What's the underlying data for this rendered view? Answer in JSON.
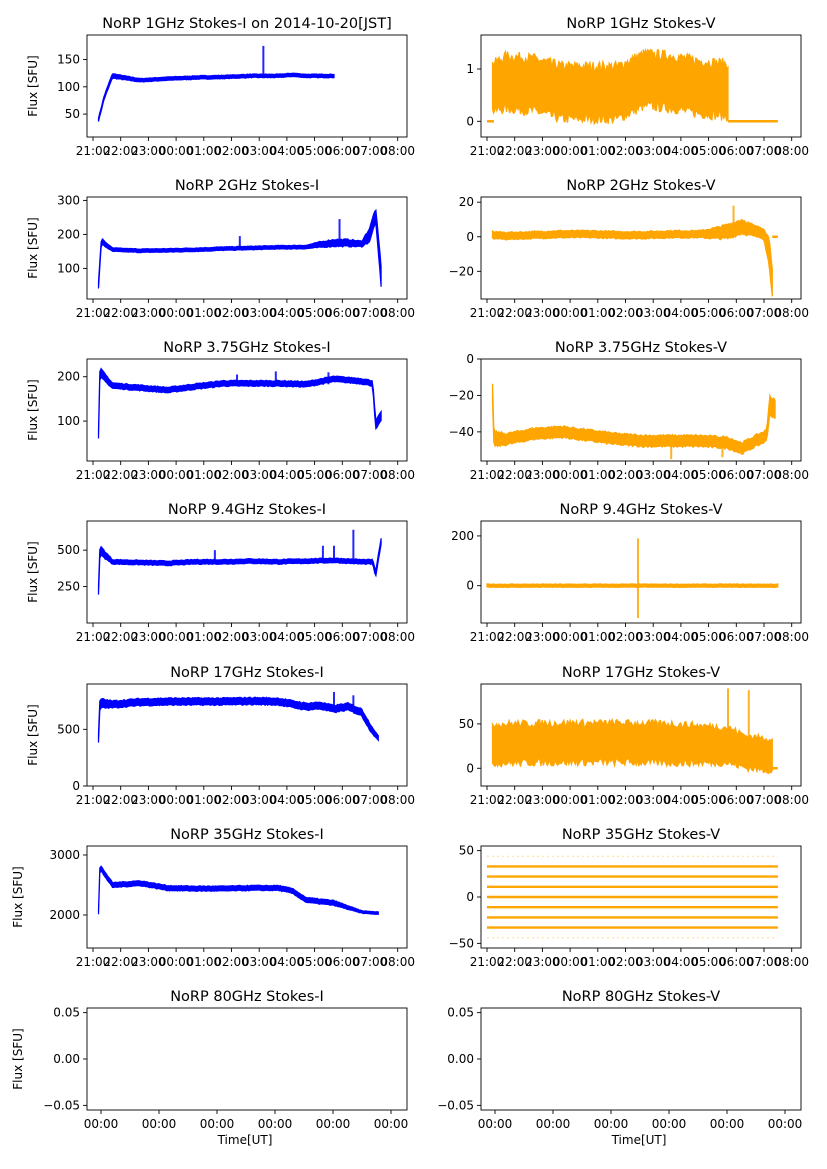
{
  "chart_data": [
    {
      "id": "1ghz-i",
      "type": "scatter",
      "title": "NoRP 1GHz Stokes-I on 2014-10-20[JST]",
      "ylabel": "Flux [SFU]",
      "xlabel": "",
      "color": "#0000ff",
      "ylim": [
        8,
        195
      ],
      "yticks": [
        50,
        100,
        150
      ],
      "ytick_labels": [
        "50",
        "100",
        "150"
      ],
      "xticks": [
        "21:00",
        "22:00",
        "23:00",
        "00:00",
        "01:00",
        "02:00",
        "03:00",
        "04:00",
        "05:00",
        "06:00",
        "07:00",
        "08:00"
      ],
      "x_hours": [
        0.5,
        0.7,
        1,
        2,
        3,
        4,
        5,
        6,
        7,
        7.5,
        8,
        9
      ],
      "y": [
        40,
        80,
        120,
        112,
        115,
        117,
        118,
        120,
        120,
        122,
        120,
        120
      ],
      "band": [
        3,
        3,
        4,
        3,
        3,
        3,
        3,
        3,
        3,
        3,
        3,
        3
      ],
      "spikes": [
        {
          "x": 6.45,
          "y": 175
        }
      ],
      "x_end": 9.05
    },
    {
      "id": "1ghz-v",
      "type": "scatter",
      "title": "NoRP 1GHz Stokes-V",
      "ylabel": "",
      "xlabel": "",
      "color": "#ffa500",
      "ylim": [
        -0.3,
        1.65
      ],
      "yticks": [
        0,
        1
      ],
      "ytick_labels": [
        "0",
        "1"
      ],
      "xticks": [
        "21:00",
        "22:00",
        "23:00",
        "00:00",
        "01:00",
        "02:00",
        "03:00",
        "04:00",
        "05:00",
        "06:00",
        "07:00",
        "08:00"
      ],
      "x_hours": [
        0.5,
        1,
        2,
        3,
        4,
        5,
        6,
        7,
        8,
        9
      ],
      "y": [
        0.65,
        0.75,
        0.7,
        0.55,
        0.55,
        0.55,
        0.8,
        0.75,
        0.65,
        0.6
      ],
      "band": [
        0.45,
        0.5,
        0.5,
        0.5,
        0.5,
        0.5,
        0.5,
        0.5,
        0.5,
        0.5
      ],
      "spikes": [],
      "x_end": 9.05,
      "flat_after": {
        "x_from": 9.0,
        "x_to": 10.8,
        "y": 0
      },
      "flat_before": {
        "x_from": 0.3,
        "x_to": 0.55,
        "y": 0
      }
    },
    {
      "id": "2ghz-i",
      "type": "scatter",
      "title": "NoRP 2GHz Stokes-I",
      "ylabel": "Flux [SFU]",
      "xlabel": "",
      "color": "#0000ff",
      "ylim": [
        10,
        310
      ],
      "yticks": [
        100,
        200,
        300
      ],
      "ytick_labels": [
        "100",
        "200",
        "300"
      ],
      "xticks": [
        "21:00",
        "22:00",
        "23:00",
        "00:00",
        "01:00",
        "02:00",
        "03:00",
        "04:00",
        "05:00",
        "06:00",
        "07:00",
        "08:00"
      ],
      "x_hours": [
        0.5,
        0.6,
        1,
        2,
        3,
        4,
        5,
        6,
        7,
        8,
        8.5,
        9,
        9.5,
        10,
        10.3,
        10.5,
        10.7
      ],
      "y": [
        50,
        180,
        155,
        152,
        153,
        155,
        158,
        160,
        162,
        163,
        170,
        175,
        175,
        172,
        200,
        260,
        80
      ],
      "band": [
        10,
        8,
        5,
        5,
        5,
        5,
        5,
        5,
        5,
        5,
        8,
        10,
        10,
        8,
        20,
        20,
        30
      ],
      "spikes": [
        {
          "x": 5.6,
          "y": 195
        },
        {
          "x": 9.2,
          "y": 245
        }
      ],
      "x_end": 10.7
    },
    {
      "id": "2ghz-v",
      "type": "scatter",
      "title": "NoRP 2GHz Stokes-V",
      "ylabel": "",
      "xlabel": "",
      "color": "#ffa500",
      "ylim": [
        -36,
        23
      ],
      "yticks": [
        -20,
        0,
        20
      ],
      "ytick_labels": [
        "−20",
        "0",
        "20"
      ],
      "xticks": [
        "21:00",
        "22:00",
        "23:00",
        "00:00",
        "01:00",
        "02:00",
        "03:00",
        "04:00",
        "05:00",
        "06:00",
        "07:00",
        "08:00"
      ],
      "x_hours": [
        0.5,
        1,
        2,
        3,
        4,
        5,
        6,
        7,
        8,
        8.5,
        9,
        9.5,
        10,
        10.3,
        10.5,
        10.6
      ],
      "y": [
        1,
        0.5,
        1,
        1.5,
        1.5,
        1,
        1,
        1.5,
        1.5,
        2,
        3,
        6,
        3,
        2,
        -10,
        -25
      ],
      "band": [
        2,
        2,
        2,
        2,
        2,
        2,
        2,
        2,
        2,
        3,
        4,
        4,
        3,
        3,
        8,
        8
      ],
      "spikes": [
        {
          "x": 9.2,
          "y": 18
        }
      ],
      "x_end": 10.6,
      "flat_after": {
        "x_from": 10.6,
        "x_to": 10.8,
        "y": 0
      }
    },
    {
      "id": "375ghz-i",
      "type": "scatter",
      "title": "NoRP 3.75GHz Stokes-I",
      "ylabel": "Flux [SFU]",
      "xlabel": "",
      "color": "#0000ff",
      "ylim": [
        10,
        240
      ],
      "yticks": [
        100,
        200
      ],
      "ytick_labels": [
        "100",
        "200"
      ],
      "xticks": [
        "21:00",
        "22:00",
        "23:00",
        "00:00",
        "01:00",
        "02:00",
        "03:00",
        "04:00",
        "05:00",
        "06:00",
        "07:00",
        "08:00"
      ],
      "x_hours": [
        0.5,
        0.55,
        1,
        2,
        3,
        4,
        5,
        6,
        7,
        8,
        9,
        10,
        10.4,
        10.5,
        10.7
      ],
      "y": [
        70,
        210,
        180,
        175,
        170,
        178,
        185,
        185,
        185,
        183,
        195,
        190,
        185,
        90,
        110
      ],
      "band": [
        10,
        10,
        6,
        6,
        6,
        6,
        6,
        6,
        6,
        6,
        6,
        6,
        6,
        10,
        10
      ],
      "spikes": [
        {
          "x": 5.5,
          "y": 205
        },
        {
          "x": 6.9,
          "y": 212
        },
        {
          "x": 8.8,
          "y": 210
        }
      ],
      "x_end": 10.7
    },
    {
      "id": "375ghz-v",
      "type": "scatter",
      "title": "NoRP 3.75GHz Stokes-V",
      "ylabel": "",
      "xlabel": "",
      "color": "#ffa500",
      "ylim": [
        -56,
        0
      ],
      "yticks": [
        -40,
        -20,
        0
      ],
      "ytick_labels": [
        "−40",
        "−20",
        "0"
      ],
      "xticks": [
        "21:00",
        "22:00",
        "23:00",
        "00:00",
        "01:00",
        "02:00",
        "03:00",
        "04:00",
        "05:00",
        "06:00",
        "07:00",
        "08:00"
      ],
      "x_hours": [
        0.5,
        0.55,
        1,
        2,
        3,
        4,
        5,
        6,
        7,
        8,
        9,
        9.5,
        10,
        10.4,
        10.5,
        10.7
      ],
      "y": [
        -18,
        -44,
        -44,
        -41,
        -40,
        -42,
        -44,
        -45,
        -45,
        -45,
        -46,
        -49,
        -45,
        -42,
        -25,
        -28
      ],
      "band": [
        5,
        4,
        3,
        3,
        3,
        3,
        3,
        3,
        3,
        3,
        3,
        3,
        3,
        3,
        5,
        5
      ],
      "spikes": [
        {
          "x": 6.95,
          "y": -55
        },
        {
          "x": 8.8,
          "y": -54
        }
      ],
      "x_end": 10.7
    },
    {
      "id": "94ghz-i",
      "type": "scatter",
      "title": "NoRP 9.4GHz Stokes-I",
      "ylabel": "Flux [SFU]",
      "xlabel": "",
      "color": "#0000ff",
      "ylim": [
        0,
        700
      ],
      "yticks": [
        250,
        500
      ],
      "ytick_labels": [
        "250",
        "500"
      ],
      "xticks": [
        "21:00",
        "22:00",
        "23:00",
        "00:00",
        "01:00",
        "02:00",
        "03:00",
        "04:00",
        "05:00",
        "06:00",
        "07:00",
        "08:00"
      ],
      "x_hours": [
        0.5,
        0.55,
        1,
        2,
        3,
        4,
        5,
        6,
        7,
        8,
        9,
        10,
        10.4,
        10.5,
        10.7
      ],
      "y": [
        220,
        500,
        420,
        415,
        410,
        420,
        420,
        425,
        420,
        425,
        430,
        420,
        420,
        330,
        560
      ],
      "band": [
        30,
        30,
        15,
        15,
        15,
        15,
        15,
        15,
        15,
        15,
        15,
        15,
        15,
        20,
        20
      ],
      "spikes": [
        {
          "x": 4.7,
          "y": 500
        },
        {
          "x": 8.6,
          "y": 530
        },
        {
          "x": 9.0,
          "y": 530
        },
        {
          "x": 9.7,
          "y": 640
        }
      ],
      "x_end": 10.7
    },
    {
      "id": "94ghz-v",
      "type": "scatter",
      "title": "NoRP 9.4GHz Stokes-V",
      "ylabel": "",
      "xlabel": "",
      "color": "#ffa500",
      "ylim": [
        -150,
        260
      ],
      "yticks": [
        0,
        200
      ],
      "ytick_labels": [
        "0",
        "200"
      ],
      "xticks": [
        "21:00",
        "22:00",
        "23:00",
        "00:00",
        "01:00",
        "02:00",
        "03:00",
        "04:00",
        "05:00",
        "06:00",
        "07:00",
        "08:00"
      ],
      "x_hours": [
        0.3,
        10.8
      ],
      "y": [
        0,
        0
      ],
      "band": [
        6,
        6
      ],
      "spikes": [
        {
          "x": 5.75,
          "y": 190
        },
        {
          "x": 5.75,
          "y": -130
        }
      ],
      "x_end": 10.8
    },
    {
      "id": "17ghz-i",
      "type": "scatter",
      "title": "NoRP 17GHz Stokes-I",
      "ylabel": "Flux [SFU]",
      "xlabel": "",
      "color": "#0000ff",
      "ylim": [
        0,
        900
      ],
      "yticks": [
        0,
        500
      ],
      "ytick_labels": [
        "0",
        "500"
      ],
      "xticks": [
        "21:00",
        "22:00",
        "23:00",
        "00:00",
        "01:00",
        "02:00",
        "03:00",
        "04:00",
        "05:00",
        "06:00",
        "07:00",
        "08:00"
      ],
      "x_hours": [
        0.5,
        0.55,
        1,
        2,
        3,
        4,
        5,
        6,
        7,
        8,
        8.5,
        9,
        9.5,
        10,
        10.3,
        10.6
      ],
      "y": [
        420,
        730,
        720,
        740,
        745,
        745,
        745,
        750,
        745,
        700,
        710,
        680,
        700,
        650,
        520,
        420
      ],
      "band": [
        40,
        40,
        30,
        30,
        30,
        30,
        30,
        30,
        30,
        30,
        30,
        30,
        30,
        30,
        30,
        20
      ],
      "spikes": [
        {
          "x": 9.0,
          "y": 830
        },
        {
          "x": 9.7,
          "y": 800
        }
      ],
      "x_end": 10.6
    },
    {
      "id": "17ghz-v",
      "type": "scatter",
      "title": "NoRP 17GHz Stokes-V",
      "ylabel": "",
      "xlabel": "",
      "color": "#ffa500",
      "ylim": [
        -20,
        95
      ],
      "yticks": [
        0,
        50
      ],
      "ytick_labels": [
        "0",
        "50"
      ],
      "xticks": [
        "21:00",
        "22:00",
        "23:00",
        "00:00",
        "01:00",
        "02:00",
        "03:00",
        "04:00",
        "05:00",
        "06:00",
        "07:00",
        "08:00"
      ],
      "x_hours": [
        0.5,
        1,
        3,
        5,
        7,
        9,
        9.7,
        10.6
      ],
      "y": [
        28,
        28,
        29,
        29,
        28,
        26,
        18,
        15
      ],
      "band": [
        22,
        22,
        22,
        22,
        22,
        20,
        18,
        18
      ],
      "spikes": [
        {
          "x": 9.0,
          "y": 90
        },
        {
          "x": 9.75,
          "y": 88
        }
      ],
      "x_end": 10.6,
      "flat_after": {
        "x_from": 10.6,
        "x_to": 10.8,
        "y": 0
      }
    },
    {
      "id": "35ghz-i",
      "type": "scatter",
      "title": "NoRP 35GHz Stokes-I",
      "ylabel": "Flux [SFU]",
      "xlabel": "",
      "color": "#0000ff",
      "ylim": [
        1450,
        3150
      ],
      "yticks": [
        2000,
        3000
      ],
      "ytick_labels": [
        "2000",
        "3000"
      ],
      "xticks": [
        "21:00",
        "22:00",
        "23:00",
        "00:00",
        "01:00",
        "02:00",
        "03:00",
        "04:00",
        "05:00",
        "06:00",
        "07:00",
        "08:00"
      ],
      "x_hours": [
        0.5,
        0.55,
        1,
        2,
        3,
        4,
        5,
        6,
        7,
        7.5,
        8,
        9,
        10,
        10.6
      ],
      "y": [
        2050,
        2800,
        2500,
        2530,
        2450,
        2440,
        2440,
        2450,
        2450,
        2400,
        2250,
        2200,
        2050,
        2030
      ],
      "band": [
        40,
        40,
        40,
        40,
        40,
        40,
        40,
        40,
        40,
        40,
        40,
        40,
        20,
        20
      ],
      "spikes": [],
      "x_end": 10.6
    },
    {
      "id": "35ghz-v",
      "type": "scatter",
      "title": "NoRP 35GHz Stokes-V",
      "ylabel": "",
      "xlabel": "",
      "color": "#ffa500",
      "ylim": [
        -55,
        55
      ],
      "yticks": [
        -50,
        0,
        50
      ],
      "ytick_labels": [
        "−50",
        "0",
        "50"
      ],
      "xticks": [
        "21:00",
        "22:00",
        "23:00",
        "00:00",
        "01:00",
        "02:00",
        "03:00",
        "04:00",
        "05:00",
        "06:00",
        "07:00",
        "08:00"
      ],
      "levels": [
        -44,
        -33,
        -22,
        -11,
        0,
        11,
        22,
        33,
        44
      ],
      "x_range": [
        0.3,
        10.8
      ]
    },
    {
      "id": "80ghz-i",
      "type": "scatter",
      "title": "NoRP 80GHz Stokes-I",
      "ylabel": "Flux [SFU]",
      "xlabel": "Time[UT]",
      "color": "#0000ff",
      "ylim": [
        -0.055,
        0.055
      ],
      "yticks": [
        -0.05,
        0,
        0.05
      ],
      "ytick_labels": [
        "−0.05",
        "0.00",
        "0.05"
      ],
      "xticks": [
        "00:00",
        "00:00",
        "00:00",
        "00:00",
        "00:00",
        "00:00"
      ],
      "empty": true
    },
    {
      "id": "80ghz-v",
      "type": "scatter",
      "title": "NoRP 80GHz Stokes-V",
      "ylabel": "",
      "xlabel": "Time[UT]",
      "color": "#ffa500",
      "ylim": [
        -0.055,
        0.055
      ],
      "yticks": [
        -0.05,
        0,
        0.05
      ],
      "ytick_labels": [
        "−0.05",
        "0.00",
        "0.05"
      ],
      "xticks": [
        "00:00",
        "00:00",
        "00:00",
        "00:00",
        "00:00",
        "00:00"
      ],
      "empty": true
    }
  ]
}
